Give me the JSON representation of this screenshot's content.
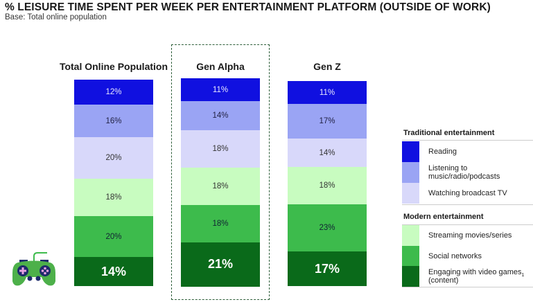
{
  "title": "% LEISURE TIME SPENT PER WEEK PER ENTERTAINMENT PLATFORM (OUTSIDE OF WORK)",
  "subtitle": "Base: Total online population",
  "chart_data": {
    "type": "bar",
    "stacked": true,
    "title": "% LEISURE TIME SPENT PER WEEK PER ENTERTAINMENT PLATFORM (OUTSIDE OF WORK)",
    "subtitle": "Base: Total online population",
    "categories": [
      "Total Online Population",
      "Gen Alpha",
      "Gen Z"
    ],
    "highlighted_category": "Gen Alpha",
    "series": [
      {
        "name": "Reading",
        "group": "Traditional entertainment",
        "color": "#1010e0",
        "text_color": "#e8e8ff",
        "values": [
          12,
          11,
          11
        ],
        "labels": [
          "12%",
          "11%",
          "11%"
        ]
      },
      {
        "name": "Listening to music/radio/podcasts",
        "group": "Traditional entertainment",
        "color": "#9aa4f4",
        "text_color": "#222244",
        "values": [
          16,
          14,
          17
        ],
        "labels": [
          "16%",
          "14%",
          "17%"
        ]
      },
      {
        "name": "Watching broadcast TV",
        "group": "Traditional entertainment",
        "color": "#d8d8fa",
        "text_color": "#333",
        "values": [
          20,
          18,
          14
        ],
        "labels": [
          "20%",
          "18%",
          "14%"
        ]
      },
      {
        "name": "Streaming movies/series",
        "group": "Modern entertainment",
        "color": "#c8fcc0",
        "text_color": "#333",
        "values": [
          18,
          18,
          18
        ],
        "labels": [
          "18%",
          "18%",
          "18%"
        ]
      },
      {
        "name": "Social networks",
        "group": "Modern entertainment",
        "color": "#3dbb4c",
        "text_color": "#123",
        "values": [
          20,
          18,
          23
        ],
        "labels": [
          "20%",
          "18%",
          "23%"
        ]
      },
      {
        "name": "Engaging with video games (content)",
        "group": "Modern entertainment",
        "color": "#0a6a1a",
        "text_color": "#ffffff",
        "values": [
          14,
          21,
          17
        ],
        "labels": [
          "14%",
          "21%",
          "17%"
        ],
        "emphasized": true
      }
    ],
    "legend": {
      "placement": "right",
      "groups": [
        {
          "title": "Traditional entertainment",
          "items": [
            "Reading",
            "Listening to music/radio/podcasts",
            "Watching broadcast TV"
          ]
        },
        {
          "title": "Modern entertainment",
          "items": [
            "Streaming movies/series",
            "Social networks",
            "Engaging with video games (content)"
          ]
        }
      ]
    },
    "footnote_marker": "1",
    "xlabel": "",
    "ylabel": ""
  },
  "legend": {
    "traditional_title": "Traditional entertainment",
    "modern_title": "Modern entertainment",
    "items": [
      {
        "label": "Reading",
        "color": "#1010e0"
      },
      {
        "label": "Listening to\nmusic/radio/podcasts",
        "color": "#9aa4f4"
      },
      {
        "label": "Watching broadcast TV",
        "color": "#d8d8fa"
      },
      {
        "label": "Streaming movies/series",
        "color": "#c8fcc0"
      },
      {
        "label": "Social networks",
        "color": "#3dbb4c"
      },
      {
        "label": "Engaging with video games\n(content)",
        "color": "#0a6a1a",
        "sup": "1"
      }
    ]
  },
  "icons": {
    "gamepad": "gamepad-icon"
  }
}
